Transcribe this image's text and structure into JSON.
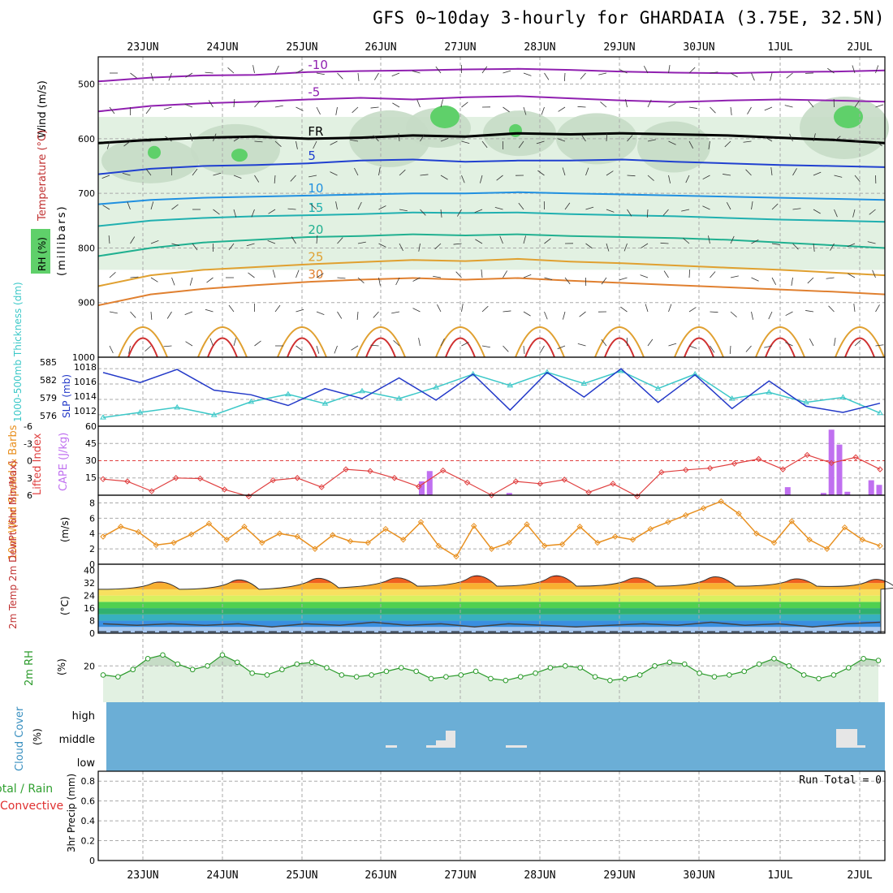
{
  "title": "GFS 0~10day 3-hourly for GHARDAIA (3.75E, 32.5N)",
  "dates": [
    "23JUN",
    "24JUN",
    "25JUN",
    "26JUN",
    "27JUN",
    "28JUN",
    "29JUN",
    "30JUN",
    "1JUL",
    "2JUL"
  ],
  "colors": {
    "frame": "#000000",
    "grid": "#aaaaaa",
    "rh_light": "#e2f1e2",
    "rh_mid": "#c6dcc6",
    "rh_dark": "#a9bfa9",
    "rh_green": "#5fd06a",
    "cloud_bg": "#6baed6",
    "cloud_block": "#e6e6e6",
    "slp": "#2238c8",
    "thickness": "#3cc8c8",
    "li": "#e04040",
    "cape": "#c070f0",
    "wind10": "#e89020",
    "rh2m": "#2a9a2a",
    "dewpt": "#444444",
    "t_purple": "#9020b0",
    "t_blue": "#2050d0",
    "t_teal": "#20b0a0",
    "t_orange": "#e0a030",
    "t_red": "#d03030"
  },
  "panels": {
    "upper": {
      "label_wind": "Wind (m/s)",
      "label_temp": "Temperature (°C)",
      "label_rh": "RH (%)",
      "label_p": "(millibars)",
      "p_ticks": [
        "500",
        "600",
        "700",
        "800",
        "900",
        "1000"
      ],
      "contours": [
        {
          "name": "-10",
          "color": "#9020b0",
          "p": [
            495,
            488,
            484,
            483,
            478,
            476,
            475,
            473,
            472,
            474,
            477,
            479,
            480,
            478,
            477,
            475
          ]
        },
        {
          "name": "-5",
          "color": "#9020b0",
          "p": [
            550,
            540,
            535,
            532,
            528,
            525,
            528,
            524,
            522,
            526,
            530,
            533,
            530,
            528,
            530,
            532
          ]
        },
        {
          "name": "FR",
          "color": "#000000",
          "p": [
            608,
            602,
            598,
            596,
            600,
            598,
            594,
            596,
            590,
            592,
            590,
            592,
            594,
            598,
            602,
            608
          ]
        },
        {
          "name": "5",
          "color": "#2040d0",
          "p": [
            665,
            655,
            650,
            648,
            645,
            640,
            638,
            642,
            640,
            640,
            638,
            642,
            645,
            648,
            650,
            652
          ]
        },
        {
          "name": "10",
          "color": "#2090e0",
          "p": [
            720,
            712,
            708,
            706,
            704,
            702,
            700,
            700,
            698,
            700,
            702,
            704,
            706,
            708,
            710,
            712
          ]
        },
        {
          "name": "15",
          "color": "#20b0b0",
          "p": [
            760,
            750,
            745,
            742,
            740,
            738,
            735,
            736,
            735,
            738,
            740,
            742,
            745,
            748,
            750,
            752
          ]
        },
        {
          "name": "20",
          "color": "#20b090",
          "p": [
            815,
            800,
            790,
            785,
            780,
            778,
            775,
            777,
            775,
            778,
            780,
            782,
            785,
            790,
            795,
            800
          ]
        },
        {
          "name": "25",
          "color": "#e0a030",
          "p": [
            870,
            850,
            840,
            835,
            830,
            826,
            822,
            824,
            820,
            825,
            828,
            832,
            836,
            840,
            845,
            850
          ]
        },
        {
          "name": "30",
          "color": "#e08030",
          "p": [
            905,
            885,
            875,
            868,
            862,
            858,
            855,
            858,
            855,
            860,
            864,
            868,
            872,
            876,
            880,
            885
          ]
        }
      ]
    },
    "slp": {
      "label_thick": "1000-500mb Thickness (dm)",
      "label_slp": "SLP (mb)",
      "thick_ticks": [
        "585",
        "582",
        "579",
        "576"
      ],
      "slp_ticks": [
        "1018",
        "1016",
        "1014",
        "1012"
      ],
      "slp_values": [
        1017.5,
        1016.2,
        1017.9,
        1015.2,
        1014.6,
        1013.2,
        1015.4,
        1014.1,
        1016.8,
        1013.9,
        1017.3,
        1012.6,
        1017.5,
        1014.3,
        1018.0,
        1013.6,
        1017.2,
        1012.8,
        1016.4,
        1013.1,
        1012.3,
        1013.5
      ],
      "thick_values": [
        576.4,
        577.2,
        578.0,
        576.8,
        578.9,
        580.1,
        578.6,
        580.6,
        579.4,
        581.2,
        583.3,
        581.5,
        583.6,
        581.8,
        583.8,
        581.0,
        583.3,
        579.4,
        580.4,
        578.8,
        579.6,
        577.1
      ]
    },
    "li_cape": {
      "label_li": "Lifted Index",
      "label_cape": "CAPE (J/kg)",
      "li_ticks": [
        "-6",
        "-3",
        "0",
        "3",
        "6"
      ],
      "cape_ticks": [
        "60",
        "45",
        "30",
        "15"
      ],
      "li_values": [
        3.2,
        3.6,
        5.3,
        3.0,
        3.1,
        5.0,
        6.2,
        3.4,
        3.0,
        4.6,
        1.5,
        1.8,
        3.0,
        4.5,
        1.7,
        3.8,
        6.0,
        3.6,
        4.0,
        3.3,
        5.5,
        4.0,
        6.2,
        2.0,
        1.6,
        1.3,
        0.5,
        -0.3,
        1.5,
        -1.0,
        0.4,
        -0.6,
        1.5
      ],
      "cape_bars": [
        {
          "x": 26.5,
          "v": 12
        },
        {
          "x": 26.6,
          "v": 21
        },
        {
          "x": 27.6,
          "v": 2
        },
        {
          "x": 31.1,
          "v": 7
        },
        {
          "x": 31.55,
          "v": 2
        },
        {
          "x": 31.65,
          "v": 57
        },
        {
          "x": 31.75,
          "v": 44
        },
        {
          "x": 31.85,
          "v": 3
        },
        {
          "x": 32.15,
          "v": 13
        },
        {
          "x": 32.25,
          "v": 9
        }
      ]
    },
    "wind10": {
      "label": "10m Wind Speed & Barbs",
      "unit": "(m/s)",
      "ticks": [
        "8",
        "6",
        "4",
        "2",
        "0"
      ],
      "values": [
        3.6,
        4.9,
        4.2,
        2.5,
        2.8,
        3.9,
        5.3,
        3.2,
        4.9,
        2.8,
        4.0,
        3.6,
        2.0,
        3.8,
        3.0,
        2.8,
        4.6,
        3.2,
        5.5,
        2.4,
        1.0,
        5.0,
        2.0,
        2.8,
        5.2,
        2.4,
        2.6,
        4.9,
        2.8,
        3.6,
        3.2,
        4.6,
        5.5,
        6.4,
        7.3,
        8.2,
        6.6,
        4.0,
        2.8,
        5.6,
        3.2,
        2.0,
        4.8,
        3.2,
        2.4
      ]
    },
    "temp2m": {
      "label": "2m Temp 2m DewPt (6hr Min/Max)",
      "unit": "(°C)",
      "ticks": [
        "40",
        "32",
        "24",
        "16",
        "8",
        "0"
      ],
      "temp_max": [
        35,
        37,
        38,
        38,
        40,
        40,
        38,
        39,
        37,
        37
      ],
      "temp_min": [
        28,
        28,
        29,
        30,
        30,
        30,
        30,
        30,
        30,
        29
      ],
      "dewpt": [
        6,
        5,
        6,
        5,
        6,
        4,
        6,
        5,
        7,
        5,
        6,
        4,
        6,
        5,
        4,
        5,
        6,
        5,
        7,
        5,
        6,
        4,
        6,
        7
      ]
    },
    "rh2m": {
      "label": "2m RH",
      "unit": "(%)",
      "ticks": [
        "20"
      ],
      "values": [
        15,
        14,
        18,
        24,
        26,
        21,
        18,
        20,
        26,
        22,
        16,
        15,
        18,
        21,
        22,
        19,
        15,
        14,
        15,
        17,
        19,
        17,
        13,
        14,
        15,
        17,
        13,
        12,
        14,
        16,
        19,
        20,
        19,
        14,
        12,
        13,
        15,
        20,
        22,
        21,
        16,
        14,
        15,
        17,
        21,
        24,
        20,
        15,
        13,
        15,
        19,
        24,
        23
      ]
    },
    "cloud": {
      "label": "Cloud Cover",
      "unit": "(%)",
      "levels": [
        "high",
        "middle",
        "low"
      ]
    },
    "precip": {
      "label_a": "Total / Rain",
      "label_b": "Convective",
      "unit": "3hr Precip (mm)",
      "ticks": [
        "0.8",
        "0.6",
        "0.4",
        "0.2",
        "0"
      ],
      "run_total": "Run Total = 0"
    }
  }
}
